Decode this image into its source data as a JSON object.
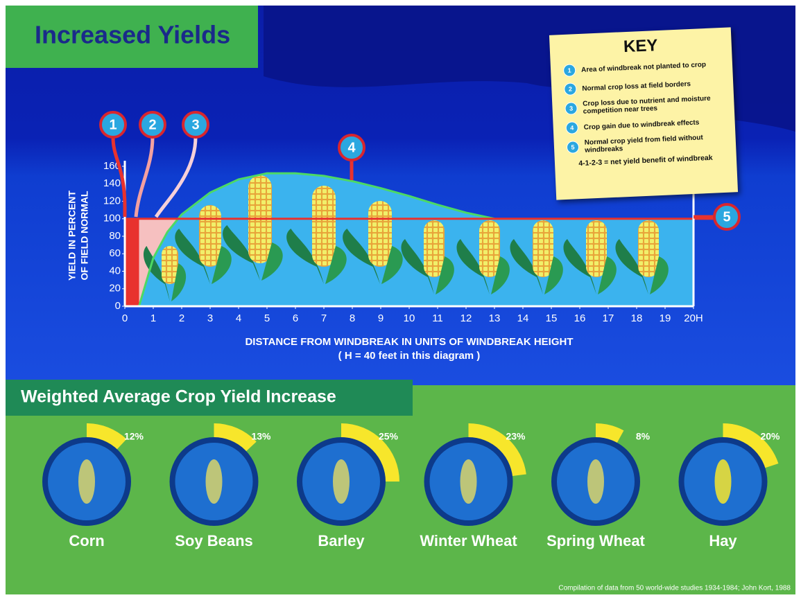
{
  "title": "Increased Yields",
  "key": {
    "title": "KEY",
    "items": [
      {
        "number": "1",
        "text": "Area of windbreak not planted to crop"
      },
      {
        "number": "2",
        "text": "Normal crop loss at field borders"
      },
      {
        "number": "3",
        "text": "Crop loss due to nutrient and moisture competition near trees"
      },
      {
        "number": "4",
        "text": "Crop gain due to windbreak effects"
      },
      {
        "number": "5",
        "text": "Normal crop yield from field without windbreaks"
      }
    ],
    "formula": "4-1-2-3 = net yield benefit of windbreak"
  },
  "source": "Compilation of data from 50 world-wide studies 1934-1984; John Kort, 1988",
  "chart_data": [
    {
      "type": "area",
      "y_label": [
        "YIELD IN PERCENT",
        "OF FIELD NORMAL"
      ],
      "x_label": "DISTANCE FROM WINDBREAK IN UNITS OF WINDBREAK HEIGHT",
      "x_note": "( H = 40 feet in this diagram )",
      "annotations": [
        "1",
        "2",
        "3",
        "4",
        "5"
      ],
      "xlim": [
        0,
        20
      ],
      "ylim": [
        0,
        160
      ],
      "xticks": [
        0,
        1,
        2,
        3,
        4,
        5,
        6,
        7,
        8,
        9,
        10,
        11,
        12,
        13,
        14,
        15,
        16,
        17,
        18,
        19,
        {
          "value": 20,
          "label": "20H"
        }
      ],
      "yticks": [
        0,
        20,
        40,
        60,
        80,
        100,
        120,
        140,
        160
      ],
      "normal_yield": 100,
      "series": [
        {
          "color": "#4cd964",
          "x": [
            0.5,
            1,
            1.5,
            2,
            3,
            4,
            5,
            6,
            7,
            8,
            9,
            10,
            11,
            12,
            13
          ],
          "values": [
            0,
            55,
            85,
            105,
            130,
            145,
            152,
            152,
            149,
            143,
            135,
            126,
            116,
            107,
            100
          ]
        }
      ]
    },
    {
      "type": "radial",
      "title": "Weighted Average Crop Yield Increase",
      "categories": [
        "Corn",
        "Soy Beans",
        "Barley",
        "Winter Wheat",
        "Spring Wheat",
        "Hay"
      ],
      "values": [
        12,
        13,
        25,
        23,
        8,
        20
      ],
      "value_labels": [
        "12%",
        "13%",
        "25%",
        "23%",
        "8%",
        "20%"
      ],
      "rlim": [
        0,
        100
      ],
      "color": "#f7e62b"
    }
  ]
}
